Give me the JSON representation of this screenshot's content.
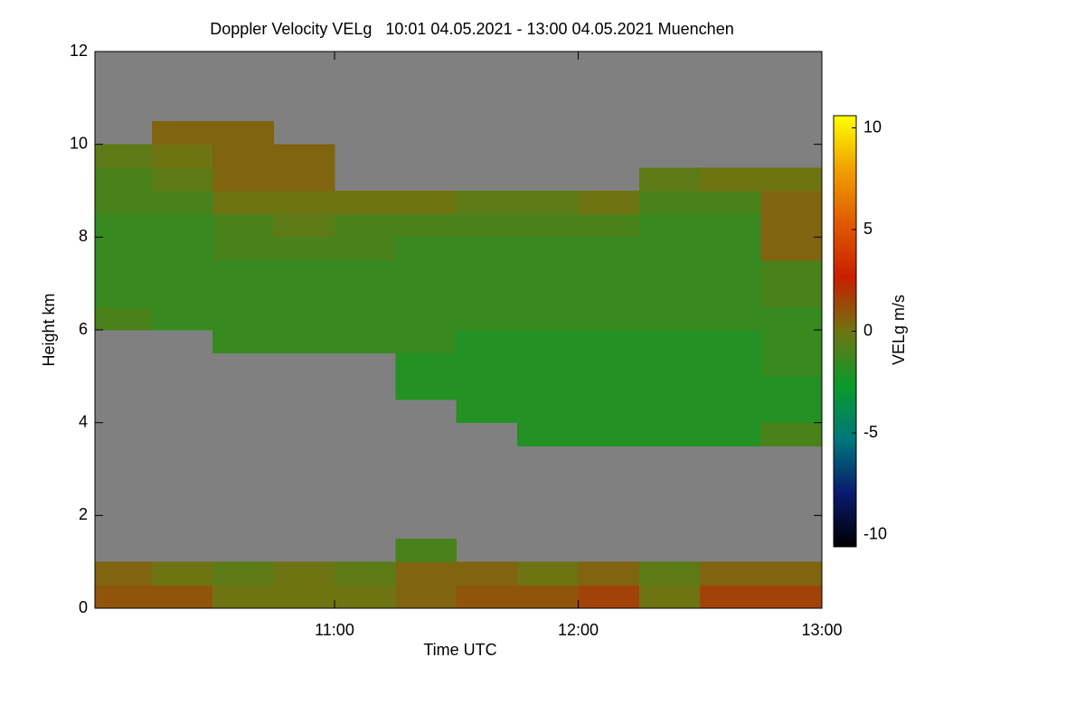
{
  "chart_data": {
    "type": "heatmap",
    "title": "Doppler Velocity VELg   10:01 04.05.2021 - 13:00 04.05.2021 Muenchen",
    "xlabel": "Time UTC",
    "ylabel": "Height km",
    "colorbar_label": "VELg m/s",
    "xlim": [
      10.0167,
      13.0
    ],
    "xticks": [
      {
        "value": 11,
        "label": "11:00"
      },
      {
        "value": 12,
        "label": "12:00"
      },
      {
        "value": 13,
        "label": "13:00"
      }
    ],
    "ylim": [
      0,
      12
    ],
    "yticks": [
      0,
      2,
      4,
      6,
      8,
      10,
      12
    ],
    "clim": [
      -10.6,
      10.6
    ],
    "cticks": [
      -10,
      -5,
      0,
      5,
      10
    ],
    "colorscale": [
      "#000000",
      "#0a1a6e",
      "#00787a",
      "#0a9a2a",
      "#6f7412",
      "#c81e00",
      "#e05a00",
      "#f0a000",
      "#ffff00"
    ],
    "missing_color": "#808080",
    "x_bins": [
      10.0167,
      10.25,
      10.5,
      10.75,
      11.0,
      11.25,
      11.5,
      11.75,
      12.0,
      12.25,
      12.5,
      12.75,
      13.0
    ],
    "y_bins": [
      0,
      0.5,
      1,
      1.5,
      2,
      2.5,
      3,
      3.5,
      4,
      4.5,
      5,
      5.5,
      6,
      6.5,
      7,
      7.5,
      8,
      8.5,
      9,
      9.5,
      10,
      10.5,
      11,
      11.5,
      12
    ],
    "values": [
      [
        1,
        0.5,
        null,
        null,
        null,
        null,
        null,
        null,
        null,
        null,
        null,
        null,
        -1,
        -1.5,
        -1.5,
        -1.5,
        -1.5,
        -1,
        -1,
        -0.5,
        null,
        null,
        null,
        null
      ],
      [
        1,
        0,
        null,
        null,
        null,
        null,
        null,
        null,
        null,
        null,
        null,
        null,
        -1.5,
        -1.5,
        -1.5,
        -1.5,
        -1.5,
        -1,
        -0.5,
        0,
        0.5,
        null,
        null,
        null
      ],
      [
        0,
        -0.5,
        null,
        null,
        null,
        null,
        null,
        null,
        null,
        null,
        null,
        -1.5,
        -1.5,
        -1.5,
        -1.5,
        -1,
        -1,
        0,
        0.5,
        0.5,
        0.5,
        null,
        null,
        null
      ],
      [
        0,
        0,
        null,
        null,
        null,
        null,
        null,
        null,
        null,
        null,
        null,
        -1.5,
        -1.5,
        -1.5,
        -1.5,
        -1,
        -0.5,
        0,
        0.5,
        0.5,
        null,
        null,
        null,
        null
      ],
      [
        0,
        -0.5,
        null,
        null,
        null,
        null,
        null,
        null,
        null,
        null,
        null,
        -1.5,
        -1.5,
        -1.5,
        -1.5,
        -1,
        -1,
        0,
        null,
        null,
        null,
        null,
        null,
        null
      ],
      [
        0.5,
        0.5,
        -1,
        null,
        null,
        null,
        null,
        null,
        null,
        -2,
        -2,
        -1.5,
        -1.5,
        -1.5,
        -1.5,
        -1.5,
        -1,
        0,
        null,
        null,
        null,
        null,
        null,
        null
      ],
      [
        1,
        0.5,
        null,
        null,
        null,
        null,
        null,
        null,
        -2,
        -2,
        -2,
        -2,
        -1.5,
        -1.5,
        -1.5,
        -1.5,
        -1,
        -0.5,
        null,
        null,
        null,
        null,
        null,
        null
      ],
      [
        1,
        0,
        null,
        null,
        null,
        null,
        null,
        -2,
        -2,
        -2,
        -2,
        -2,
        -1.5,
        -1.5,
        -1.5,
        -1.5,
        -1,
        -0.5,
        null,
        null,
        null,
        null,
        null,
        null
      ],
      [
        1.5,
        0.5,
        null,
        null,
        null,
        null,
        null,
        -2,
        -2,
        -2,
        -2,
        -2,
        -1.5,
        -1.5,
        -1.5,
        -1.5,
        -1,
        0,
        null,
        null,
        null,
        null,
        null,
        null
      ],
      [
        0,
        -0.5,
        null,
        null,
        null,
        null,
        null,
        -2,
        -2,
        -2,
        -2,
        -2,
        -1.5,
        -1.5,
        -1.5,
        -1.5,
        -1.5,
        -1,
        -0.5,
        null,
        null,
        null,
        null,
        null
      ],
      [
        1.5,
        0.5,
        null,
        null,
        null,
        null,
        null,
        -2,
        -2,
        -2,
        -2,
        -2,
        -1.5,
        -1.5,
        -1.5,
        -1.5,
        -1.5,
        -1,
        0,
        null,
        null,
        null,
        null,
        null
      ],
      [
        1.5,
        0.5,
        null,
        null,
        null,
        null,
        null,
        -1,
        -2,
        -2,
        -1.5,
        -1.5,
        -1.5,
        -1,
        -1,
        0.5,
        0.5,
        0.5,
        0,
        null,
        null,
        null,
        null,
        null
      ]
    ]
  }
}
